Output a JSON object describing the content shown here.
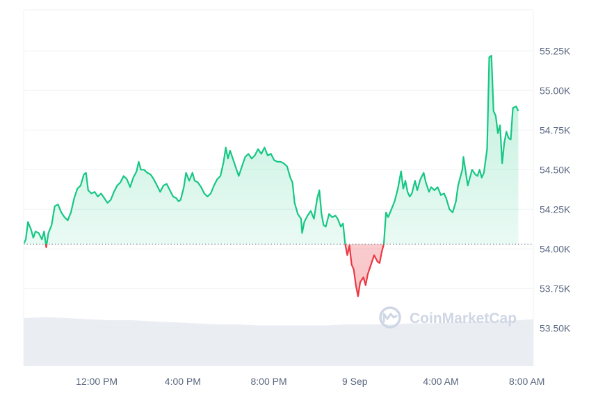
{
  "watermark": {
    "text": "CoinMarketCap",
    "icon": "coinmarketcap-logo"
  },
  "colors": {
    "up": "#16c784",
    "down": "#ea3943",
    "baseline": "#58667e",
    "grid": "#eff2f5",
    "volume": "#e3e8ef"
  },
  "chart_data": {
    "type": "area",
    "baseline_value": 54030,
    "ylim": [
      53260,
      55510
    ],
    "y_ticks": [
      {
        "value": 53500,
        "label": "53.50K"
      },
      {
        "value": 53750,
        "label": "53.75K"
      },
      {
        "value": 54000,
        "label": "54.00K"
      },
      {
        "value": 54250,
        "label": "54.25K"
      },
      {
        "value": 54500,
        "label": "54.50K"
      },
      {
        "value": 54750,
        "label": "54.75K"
      },
      {
        "value": 55000,
        "label": "55.00K"
      },
      {
        "value": 55250,
        "label": "55.25K"
      }
    ],
    "x_range_hours": [
      0,
      23.7
    ],
    "x_ticks": [
      {
        "hour": 3.4,
        "label": "12:00 PM"
      },
      {
        "hour": 7.4,
        "label": "4:00 PM"
      },
      {
        "hour": 11.4,
        "label": "8:00 PM"
      },
      {
        "hour": 15.4,
        "label": "9 Sep"
      },
      {
        "hour": 19.4,
        "label": "4:00 AM"
      },
      {
        "hour": 23.4,
        "label": "8:00 AM"
      }
    ],
    "series": [
      {
        "points": [
          [
            0.0,
            54030
          ],
          [
            0.1,
            54060
          ],
          [
            0.2,
            54170
          ],
          [
            0.35,
            54120
          ],
          [
            0.45,
            54070
          ],
          [
            0.55,
            54110
          ],
          [
            0.7,
            54100
          ],
          [
            0.85,
            54060
          ],
          [
            0.95,
            54110
          ],
          [
            1.05,
            54010
          ],
          [
            1.15,
            54100
          ],
          [
            1.3,
            54150
          ],
          [
            1.45,
            54270
          ],
          [
            1.6,
            54280
          ],
          [
            1.75,
            54230
          ],
          [
            1.9,
            54200
          ],
          [
            2.05,
            54180
          ],
          [
            2.2,
            54230
          ],
          [
            2.35,
            54320
          ],
          [
            2.5,
            54380
          ],
          [
            2.65,
            54400
          ],
          [
            2.8,
            54470
          ],
          [
            2.9,
            54480
          ],
          [
            3.0,
            54370
          ],
          [
            3.15,
            54350
          ],
          [
            3.3,
            54360
          ],
          [
            3.45,
            54330
          ],
          [
            3.6,
            54350
          ],
          [
            3.75,
            54320
          ],
          [
            3.9,
            54290
          ],
          [
            4.05,
            54310
          ],
          [
            4.2,
            54360
          ],
          [
            4.35,
            54400
          ],
          [
            4.5,
            54420
          ],
          [
            4.65,
            54460
          ],
          [
            4.8,
            54440
          ],
          [
            4.95,
            54390
          ],
          [
            5.1,
            54450
          ],
          [
            5.25,
            54490
          ],
          [
            5.35,
            54550
          ],
          [
            5.45,
            54500
          ],
          [
            5.6,
            54500
          ],
          [
            5.75,
            54480
          ],
          [
            5.9,
            54470
          ],
          [
            6.05,
            54440
          ],
          [
            6.2,
            54400
          ],
          [
            6.35,
            54360
          ],
          [
            6.5,
            54400
          ],
          [
            6.65,
            54410
          ],
          [
            6.8,
            54370
          ],
          [
            6.95,
            54330
          ],
          [
            7.1,
            54320
          ],
          [
            7.2,
            54300
          ],
          [
            7.3,
            54310
          ],
          [
            7.45,
            54390
          ],
          [
            7.55,
            54480
          ],
          [
            7.7,
            54430
          ],
          [
            7.85,
            54480
          ],
          [
            7.95,
            54430
          ],
          [
            8.1,
            54420
          ],
          [
            8.25,
            54390
          ],
          [
            8.4,
            54350
          ],
          [
            8.55,
            54330
          ],
          [
            8.7,
            54350
          ],
          [
            8.85,
            54400
          ],
          [
            9.0,
            54440
          ],
          [
            9.15,
            54460
          ],
          [
            9.3,
            54550
          ],
          [
            9.4,
            54640
          ],
          [
            9.5,
            54570
          ],
          [
            9.6,
            54620
          ],
          [
            9.75,
            54560
          ],
          [
            9.9,
            54500
          ],
          [
            10.0,
            54460
          ],
          [
            10.15,
            54520
          ],
          [
            10.3,
            54580
          ],
          [
            10.45,
            54600
          ],
          [
            10.6,
            54570
          ],
          [
            10.75,
            54590
          ],
          [
            10.9,
            54630
          ],
          [
            11.05,
            54600
          ],
          [
            11.2,
            54640
          ],
          [
            11.35,
            54590
          ],
          [
            11.5,
            54600
          ],
          [
            11.65,
            54560
          ],
          [
            11.8,
            54550
          ],
          [
            11.95,
            54550
          ],
          [
            12.1,
            54540
          ],
          [
            12.25,
            54520
          ],
          [
            12.4,
            54450
          ],
          [
            12.5,
            54420
          ],
          [
            12.6,
            54290
          ],
          [
            12.75,
            54220
          ],
          [
            12.9,
            54190
          ],
          [
            12.95,
            54100
          ],
          [
            13.05,
            54170
          ],
          [
            13.2,
            54210
          ],
          [
            13.35,
            54240
          ],
          [
            13.5,
            54190
          ],
          [
            13.65,
            54320
          ],
          [
            13.75,
            54370
          ],
          [
            13.85,
            54220
          ],
          [
            13.95,
            54150
          ],
          [
            14.05,
            54140
          ],
          [
            14.2,
            54220
          ],
          [
            14.35,
            54200
          ],
          [
            14.5,
            54210
          ],
          [
            14.6,
            54190
          ],
          [
            14.75,
            54140
          ],
          [
            14.85,
            54160
          ],
          [
            14.95,
            54030
          ],
          [
            15.05,
            53960
          ],
          [
            15.15,
            54020
          ],
          [
            15.25,
            53900
          ],
          [
            15.35,
            53870
          ],
          [
            15.45,
            53770
          ],
          [
            15.55,
            53700
          ],
          [
            15.65,
            53790
          ],
          [
            15.8,
            53820
          ],
          [
            15.9,
            53770
          ],
          [
            16.0,
            53840
          ],
          [
            16.15,
            53900
          ],
          [
            16.3,
            53960
          ],
          [
            16.45,
            53920
          ],
          [
            16.55,
            53910
          ],
          [
            16.65,
            53980
          ],
          [
            16.75,
            54030
          ],
          [
            16.85,
            54230
          ],
          [
            16.95,
            54200
          ],
          [
            17.1,
            54250
          ],
          [
            17.25,
            54300
          ],
          [
            17.4,
            54380
          ],
          [
            17.55,
            54490
          ],
          [
            17.65,
            54380
          ],
          [
            17.75,
            54430
          ],
          [
            17.85,
            54360
          ],
          [
            17.95,
            54330
          ],
          [
            18.05,
            54350
          ],
          [
            18.2,
            54430
          ],
          [
            18.3,
            54370
          ],
          [
            18.45,
            54440
          ],
          [
            18.6,
            54480
          ],
          [
            18.7,
            54420
          ],
          [
            18.85,
            54360
          ],
          [
            18.95,
            54390
          ],
          [
            19.1,
            54370
          ],
          [
            19.25,
            54390
          ],
          [
            19.4,
            54340
          ],
          [
            19.55,
            54350
          ],
          [
            19.65,
            54320
          ],
          [
            19.8,
            54250
          ],
          [
            19.95,
            54230
          ],
          [
            20.1,
            54300
          ],
          [
            20.2,
            54400
          ],
          [
            20.3,
            54450
          ],
          [
            20.4,
            54500
          ],
          [
            20.45,
            54580
          ],
          [
            20.55,
            54490
          ],
          [
            20.65,
            54400
          ],
          [
            20.75,
            54450
          ],
          [
            20.85,
            54500
          ],
          [
            21.0,
            54470
          ],
          [
            21.1,
            54460
          ],
          [
            21.2,
            54500
          ],
          [
            21.3,
            54450
          ],
          [
            21.4,
            54480
          ],
          [
            21.45,
            54530
          ],
          [
            21.55,
            54630
          ],
          [
            21.65,
            55210
          ],
          [
            21.75,
            55220
          ],
          [
            21.85,
            54870
          ],
          [
            21.95,
            54840
          ],
          [
            22.05,
            54730
          ],
          [
            22.15,
            54780
          ],
          [
            22.25,
            54540
          ],
          [
            22.35,
            54670
          ],
          [
            22.45,
            54740
          ],
          [
            22.55,
            54700
          ],
          [
            22.65,
            54690
          ],
          [
            22.75,
            54890
          ],
          [
            22.9,
            54900
          ],
          [
            23.0,
            54870
          ]
        ]
      }
    ],
    "volume": [
      [
        0,
        0.46
      ],
      [
        1,
        0.47
      ],
      [
        2,
        0.46
      ],
      [
        3,
        0.45
      ],
      [
        4,
        0.44
      ],
      [
        5,
        0.44
      ],
      [
        6,
        0.43
      ],
      [
        7,
        0.42
      ],
      [
        8,
        0.41
      ],
      [
        9,
        0.4
      ],
      [
        10,
        0.4
      ],
      [
        11,
        0.39
      ],
      [
        12,
        0.39
      ],
      [
        13,
        0.39
      ],
      [
        14,
        0.39
      ],
      [
        15,
        0.4
      ],
      [
        16,
        0.4
      ],
      [
        17,
        0.4
      ],
      [
        18,
        0.41
      ],
      [
        19,
        0.41
      ],
      [
        20,
        0.42
      ],
      [
        21,
        0.43
      ],
      [
        22,
        0.43
      ],
      [
        23,
        0.44
      ],
      [
        23.7,
        0.45
      ]
    ]
  }
}
